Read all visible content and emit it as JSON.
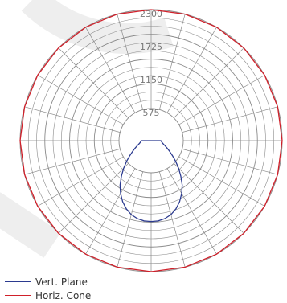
{
  "chart_data": {
    "type": "polar",
    "radial_max": 2300,
    "radial_ticks": [
      575,
      1150,
      1725,
      2300
    ],
    "angle_step_deg": 15,
    "series": [
      {
        "name": "Vert. Plane",
        "color": "#2b3a8f",
        "angles_deg": [
          0,
          5,
          10,
          15,
          20,
          25,
          30,
          35,
          40,
          45,
          50,
          55,
          60,
          65,
          70,
          75,
          80,
          85,
          90
        ],
        "values": [
          1425,
          1420,
          1395,
          1350,
          1280,
          1190,
          1080,
          960,
          820,
          690,
          570,
          465,
          380,
          315,
          265,
          225,
          200,
          185,
          175
        ]
      },
      {
        "name": "Horiz. Cone",
        "color": "#d0202a",
        "angles_deg": [
          0,
          15,
          30,
          45,
          60,
          75,
          90,
          105,
          120,
          135,
          150,
          165,
          180,
          195,
          210,
          225,
          240,
          255,
          270,
          285,
          300,
          315,
          330,
          345
        ],
        "values": [
          2300,
          2300,
          2300,
          2300,
          2300,
          2300,
          2300,
          2300,
          2300,
          2300,
          2300,
          2300,
          2300,
          2300,
          2300,
          2300,
          2300,
          2300,
          2300,
          2300,
          2300,
          2300,
          2300,
          2300
        ]
      }
    ],
    "legend": [
      "Vert. Plane",
      "Horiz. Cone"
    ],
    "legend_position": "bottom-left",
    "grid": true
  }
}
